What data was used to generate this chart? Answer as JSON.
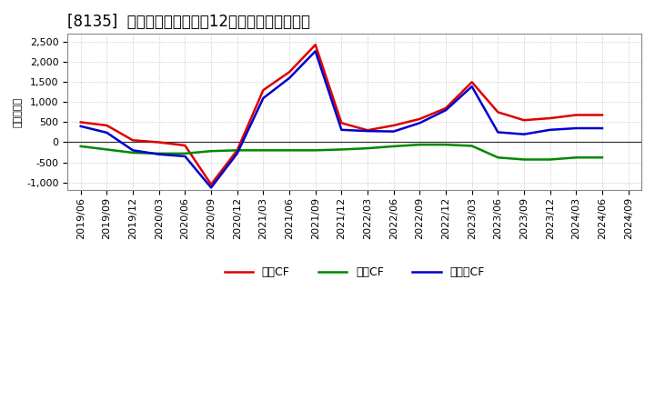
{
  "title": "[8135]  キャッシュフローの12か月移動合計の推移",
  "ylabel": "（百万円）",
  "background_color": "#ffffff",
  "plot_bg_color": "#ffffff",
  "grid_color": "#bbbbbb",
  "x_labels": [
    "2019/06",
    "2019/09",
    "2019/12",
    "2020/03",
    "2020/06",
    "2020/09",
    "2020/12",
    "2021/03",
    "2021/06",
    "2021/09",
    "2021/12",
    "2022/03",
    "2022/06",
    "2022/09",
    "2022/12",
    "2023/03",
    "2023/06",
    "2023/09",
    "2023/12",
    "2024/03",
    "2024/06",
    "2024/09"
  ],
  "eigyo_cf": [
    500,
    420,
    50,
    0,
    -80,
    -1050,
    -200,
    1300,
    1750,
    2430,
    480,
    300,
    420,
    580,
    850,
    1500,
    750,
    550,
    600,
    680,
    680,
    null
  ],
  "toshi_cf": [
    -100,
    -180,
    -260,
    -280,
    -280,
    -220,
    -200,
    -200,
    -200,
    -200,
    -180,
    -150,
    -100,
    -60,
    -60,
    -90,
    -380,
    -430,
    -430,
    -380,
    -380,
    null
  ],
  "free_cf": [
    400,
    240,
    -200,
    -300,
    -350,
    -1130,
    -280,
    1100,
    1600,
    2270,
    310,
    280,
    270,
    480,
    800,
    1390,
    250,
    200,
    310,
    350,
    350,
    null
  ],
  "eigyo_color": "#dd0000",
  "toshi_color": "#008800",
  "free_color": "#0000cc",
  "ylim": [
    -1200,
    2700
  ],
  "yticks": [
    -1000,
    -500,
    0,
    500,
    1000,
    1500,
    2000,
    2500
  ],
  "legend_labels": [
    "営業CF",
    "投資CF",
    "フリーCF"
  ],
  "title_fontsize": 12,
  "axis_fontsize": 8,
  "legend_fontsize": 9
}
